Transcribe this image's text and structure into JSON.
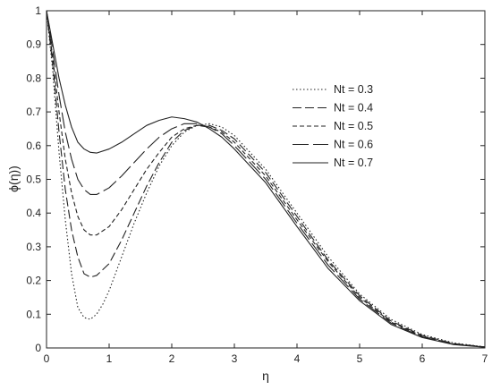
{
  "chart_data": {
    "type": "line",
    "xlabel": "η",
    "ylabel": "ϕ(η))",
    "xlim": [
      0,
      7
    ],
    "ylim": [
      0,
      1
    ],
    "xticks": [
      "0",
      "1",
      "2",
      "3",
      "4",
      "5",
      "6",
      "7"
    ],
    "yticks": [
      "0",
      "0.1",
      "0.2",
      "0.3",
      "0.4",
      "0.5",
      "0.6",
      "0.7",
      "0.8",
      "0.9",
      "1"
    ],
    "grid": false,
    "legend_position": "upper-right",
    "line_color": "#222222",
    "series": [
      {
        "name": "Nt = 0.3",
        "dash": "1.5,2.5",
        "points": [
          [
            0,
            1
          ],
          [
            0.1,
            0.82
          ],
          [
            0.2,
            0.58
          ],
          [
            0.3,
            0.38
          ],
          [
            0.4,
            0.22
          ],
          [
            0.5,
            0.12
          ],
          [
            0.6,
            0.09
          ],
          [
            0.7,
            0.085
          ],
          [
            0.8,
            0.1
          ],
          [
            0.9,
            0.13
          ],
          [
            1.0,
            0.17
          ],
          [
            1.2,
            0.27
          ],
          [
            1.4,
            0.37
          ],
          [
            1.6,
            0.46
          ],
          [
            1.8,
            0.54
          ],
          [
            2.0,
            0.6
          ],
          [
            2.2,
            0.64
          ],
          [
            2.4,
            0.66
          ],
          [
            2.6,
            0.665
          ],
          [
            2.8,
            0.655
          ],
          [
            3.0,
            0.63
          ],
          [
            3.5,
            0.53
          ],
          [
            4.0,
            0.4
          ],
          [
            4.5,
            0.27
          ],
          [
            5.0,
            0.16
          ],
          [
            5.5,
            0.085
          ],
          [
            6.0,
            0.04
          ],
          [
            6.5,
            0.015
          ],
          [
            7.0,
            0.003
          ]
        ]
      },
      {
        "name": "Nt = 0.4",
        "dash": "10,4",
        "points": [
          [
            0,
            1
          ],
          [
            0.1,
            0.84
          ],
          [
            0.2,
            0.64
          ],
          [
            0.3,
            0.47
          ],
          [
            0.4,
            0.35
          ],
          [
            0.5,
            0.27
          ],
          [
            0.6,
            0.22
          ],
          [
            0.7,
            0.21
          ],
          [
            0.8,
            0.215
          ],
          [
            1.0,
            0.25
          ],
          [
            1.2,
            0.32
          ],
          [
            1.4,
            0.4
          ],
          [
            1.6,
            0.48
          ],
          [
            1.8,
            0.55
          ],
          [
            2.0,
            0.61
          ],
          [
            2.2,
            0.645
          ],
          [
            2.4,
            0.66
          ],
          [
            2.6,
            0.66
          ],
          [
            2.8,
            0.645
          ],
          [
            3.0,
            0.62
          ],
          [
            3.5,
            0.52
          ],
          [
            4.0,
            0.39
          ],
          [
            4.5,
            0.26
          ],
          [
            5.0,
            0.155
          ],
          [
            5.5,
            0.08
          ],
          [
            6.0,
            0.037
          ],
          [
            6.5,
            0.013
          ],
          [
            7.0,
            0.003
          ]
        ]
      },
      {
        "name": "Nt = 0.5",
        "dash": "5,3",
        "points": [
          [
            0,
            1
          ],
          [
            0.1,
            0.86
          ],
          [
            0.2,
            0.7
          ],
          [
            0.3,
            0.56
          ],
          [
            0.4,
            0.46
          ],
          [
            0.5,
            0.39
          ],
          [
            0.6,
            0.35
          ],
          [
            0.7,
            0.335
          ],
          [
            0.8,
            0.335
          ],
          [
            1.0,
            0.36
          ],
          [
            1.2,
            0.41
          ],
          [
            1.4,
            0.47
          ],
          [
            1.6,
            0.53
          ],
          [
            1.8,
            0.58
          ],
          [
            2.0,
            0.625
          ],
          [
            2.2,
            0.65
          ],
          [
            2.4,
            0.66
          ],
          [
            2.6,
            0.655
          ],
          [
            2.8,
            0.64
          ],
          [
            3.0,
            0.61
          ],
          [
            3.5,
            0.51
          ],
          [
            4.0,
            0.38
          ],
          [
            4.5,
            0.255
          ],
          [
            5.0,
            0.15
          ],
          [
            5.5,
            0.077
          ],
          [
            6.0,
            0.035
          ],
          [
            6.5,
            0.012
          ],
          [
            7.0,
            0.003
          ]
        ]
      },
      {
        "name": "Nt = 0.6",
        "dash": "18,5",
        "points": [
          [
            0,
            1
          ],
          [
            0.1,
            0.88
          ],
          [
            0.2,
            0.75
          ],
          [
            0.3,
            0.64
          ],
          [
            0.4,
            0.56
          ],
          [
            0.5,
            0.5
          ],
          [
            0.6,
            0.47
          ],
          [
            0.7,
            0.455
          ],
          [
            0.8,
            0.455
          ],
          [
            1.0,
            0.475
          ],
          [
            1.2,
            0.51
          ],
          [
            1.4,
            0.55
          ],
          [
            1.6,
            0.59
          ],
          [
            1.8,
            0.625
          ],
          [
            2.0,
            0.65
          ],
          [
            2.2,
            0.665
          ],
          [
            2.4,
            0.665
          ],
          [
            2.6,
            0.655
          ],
          [
            2.8,
            0.635
          ],
          [
            3.0,
            0.6
          ],
          [
            3.5,
            0.5
          ],
          [
            4.0,
            0.37
          ],
          [
            4.5,
            0.245
          ],
          [
            5.0,
            0.145
          ],
          [
            5.5,
            0.074
          ],
          [
            6.0,
            0.033
          ],
          [
            6.5,
            0.011
          ],
          [
            7.0,
            0.003
          ]
        ]
      },
      {
        "name": "Nt = 0.7",
        "dash": "",
        "points": [
          [
            0,
            1
          ],
          [
            0.1,
            0.9
          ],
          [
            0.2,
            0.8
          ],
          [
            0.3,
            0.72
          ],
          [
            0.4,
            0.655
          ],
          [
            0.5,
            0.61
          ],
          [
            0.6,
            0.59
          ],
          [
            0.7,
            0.58
          ],
          [
            0.8,
            0.578
          ],
          [
            1.0,
            0.59
          ],
          [
            1.2,
            0.61
          ],
          [
            1.4,
            0.635
          ],
          [
            1.6,
            0.66
          ],
          [
            1.8,
            0.675
          ],
          [
            2.0,
            0.685
          ],
          [
            2.2,
            0.68
          ],
          [
            2.4,
            0.67
          ],
          [
            2.6,
            0.65
          ],
          [
            2.8,
            0.625
          ],
          [
            3.0,
            0.59
          ],
          [
            3.5,
            0.49
          ],
          [
            4.0,
            0.36
          ],
          [
            4.5,
            0.235
          ],
          [
            5.0,
            0.14
          ],
          [
            5.5,
            0.07
          ],
          [
            6.0,
            0.031
          ],
          [
            6.5,
            0.01
          ],
          [
            7.0,
            0.002
          ]
        ]
      }
    ]
  }
}
